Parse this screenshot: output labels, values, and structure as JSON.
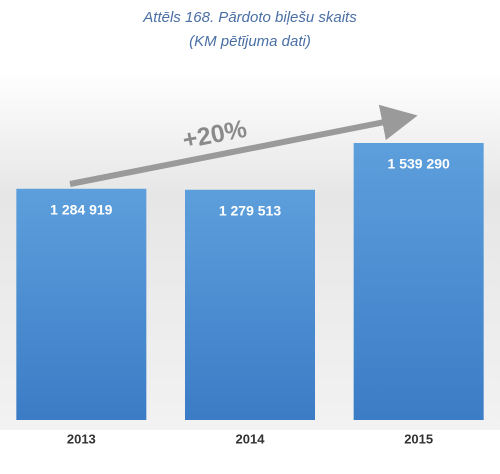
{
  "chart_data": {
    "type": "bar",
    "title": "Attēls 168. Pārdoto biļešu skaits",
    "subtitle": "(KM pētījuma dati)",
    "categories": [
      "2013",
      "2014",
      "2015"
    ],
    "values": [
      1284919,
      1279513,
      1539290
    ],
    "value_labels": [
      "1 284 919",
      "1 279 513",
      "1 539 290"
    ],
    "color": "#4a8ad0",
    "annotation": "+20%"
  }
}
